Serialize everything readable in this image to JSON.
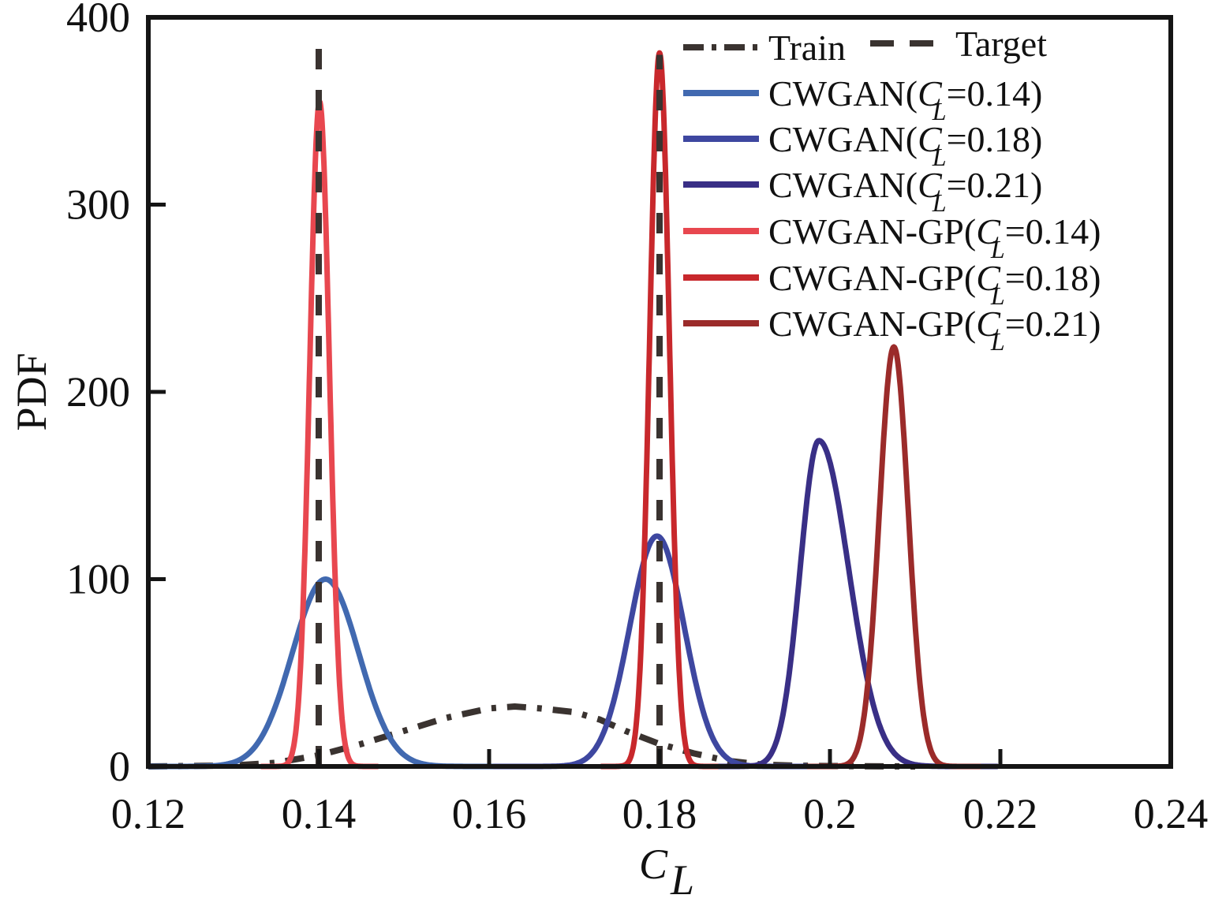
{
  "chart_data": {
    "type": "line",
    "title": "",
    "xlabel": "C",
    "xlabel_sub": "L",
    "ylabel": "PDF",
    "xlim": [
      0.12,
      0.24
    ],
    "ylim": [
      0,
      400
    ],
    "xticks": [
      0.12,
      0.14,
      0.16,
      0.18,
      0.2,
      0.22,
      0.24
    ],
    "xtick_labels": [
      "0.12",
      "0.14",
      "0.16",
      "0.18",
      "0.2",
      "0.22",
      "0.24"
    ],
    "yticks": [
      0,
      100,
      200,
      300,
      400
    ],
    "ytick_labels": [
      "0",
      "100",
      "200",
      "300",
      "400"
    ],
    "grid": false,
    "legend_position": "top-right",
    "series": [
      {
        "name": "Train",
        "label_prefix": "Train",
        "label_sub": "",
        "label_suffix": "",
        "style": "dashdot",
        "color": "#3a3330",
        "x": [
          0.12,
          0.13,
          0.135,
          0.14,
          0.145,
          0.15,
          0.155,
          0.16,
          0.163,
          0.166,
          0.17,
          0.173,
          0.176,
          0.18,
          0.184,
          0.188,
          0.192,
          0.196,
          0.2,
          0.21
        ],
        "y": [
          0,
          0.5,
          2,
          6,
          12,
          19,
          26,
          31,
          32,
          31,
          29,
          25,
          19,
          12,
          7,
          3,
          1,
          0.4,
          0.2,
          0
        ]
      },
      {
        "name": "Target",
        "label_prefix": "Target",
        "label_sub": "",
        "label_suffix": "",
        "style": "dashed",
        "color": "#3a3330",
        "spikes": [
          {
            "x": 0.14,
            "y": 385
          },
          {
            "x": 0.18,
            "y": 380
          }
        ]
      },
      {
        "name": "CWGAN(CL=0.14)",
        "label_prefix": "CWGAN(C",
        "label_sub": "L",
        "label_suffix": "=0.14)",
        "style": "solid",
        "color": "#4169b0",
        "peak_x": 0.1408,
        "peak_y": 100,
        "sigma": 0.0039
      },
      {
        "name": "CWGAN(CL=0.18)",
        "label_prefix": "CWGAN(C",
        "label_sub": "L",
        "label_suffix": "=0.18)",
        "style": "solid",
        "color": "#3e47a0",
        "peak_x": 0.1797,
        "peak_y": 123,
        "sigma": 0.0032
      },
      {
        "name": "CWGAN(CL=0.21)",
        "label_prefix": "CWGAN(C",
        "label_sub": "L",
        "label_suffix": "=0.21)",
        "style": "solid",
        "color": "#392f86",
        "peak_x": 0.1987,
        "peak_y": 174,
        "sigma": 0.0022,
        "right_sigma": 0.0035
      },
      {
        "name": "CWGAN-GP(CL=0.14)",
        "label_prefix": "CWGAN-GP(C",
        "label_sub": "L",
        "label_suffix": "=0.14)",
        "style": "solid",
        "color": "#e8474f",
        "peak_x": 0.1401,
        "peak_y": 355,
        "sigma": 0.00115
      },
      {
        "name": "CWGAN-GP(CL=0.18)",
        "label_prefix": "CWGAN-GP(C",
        "label_sub": "L",
        "label_suffix": "=0.18)",
        "style": "solid",
        "color": "#c8282c",
        "peak_x": 0.18,
        "peak_y": 381,
        "sigma": 0.00115
      },
      {
        "name": "CWGAN-GP(CL=0.21)",
        "label_prefix": "CWGAN-GP(C",
        "label_sub": "L",
        "label_suffix": "=0.21)",
        "style": "solid",
        "color": "#9b2b2a",
        "peak_x": 0.2075,
        "peak_y": 224,
        "sigma": 0.0017
      }
    ]
  }
}
